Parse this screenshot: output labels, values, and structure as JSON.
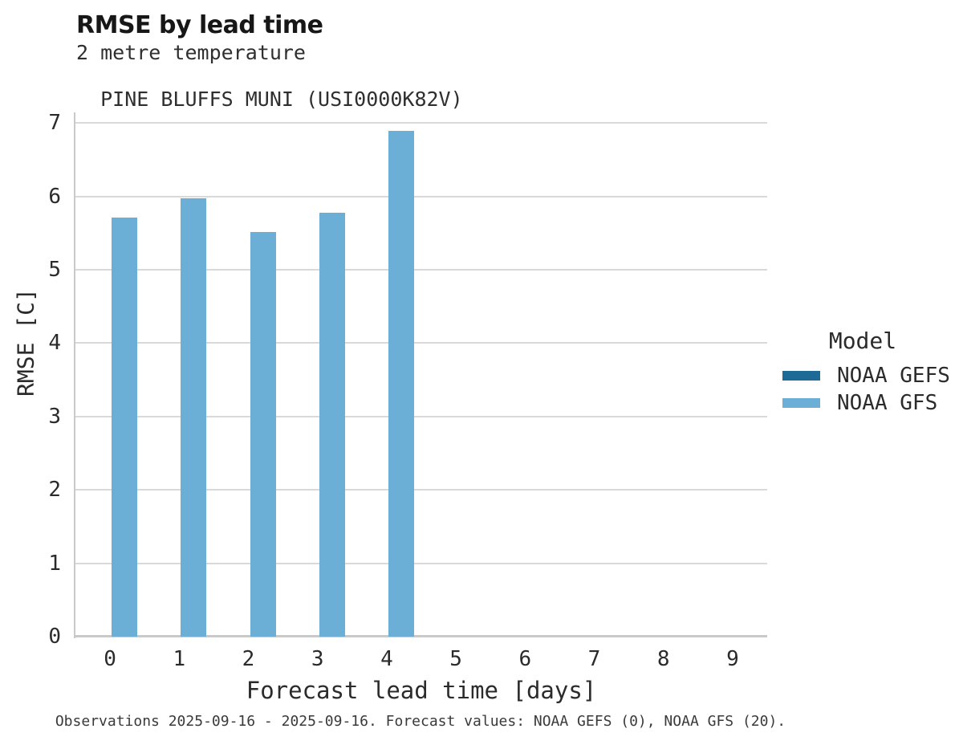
{
  "header": {
    "title": "RMSE by lead time",
    "subtitle_line1": "2 metre temperature",
    "subtitle_line2": "PINE BLUFFS MUNI (USI0000K82V)"
  },
  "chart_data": {
    "type": "bar",
    "title": "RMSE by lead time",
    "subtitle": [
      "2 metre temperature",
      "PINE BLUFFS MUNI (USI0000K82V)"
    ],
    "xlabel": "Forecast lead time [days]",
    "ylabel": "RMSE [C]",
    "categories": [
      0,
      1,
      2,
      3,
      4,
      5,
      6,
      7,
      8,
      9
    ],
    "series": [
      {
        "name": "NOAA GEFS",
        "color": "#1d6a96",
        "values": [
          null,
          null,
          null,
          null,
          null,
          null,
          null,
          null,
          null,
          null
        ]
      },
      {
        "name": "NOAA GFS",
        "color": "#6baed6",
        "values": [
          5.71,
          5.97,
          5.51,
          5.78,
          6.89,
          null,
          null,
          null,
          null,
          null
        ]
      }
    ],
    "y_ticks": [
      0,
      1,
      2,
      3,
      4,
      5,
      6,
      7
    ],
    "ylim": [
      0,
      7.15
    ],
    "grid": "horizontal",
    "legend_title": "Model",
    "legend_position": "right"
  },
  "legend": {
    "title": "Model",
    "items": [
      {
        "label": "NOAA GEFS",
        "color": "#1d6a96"
      },
      {
        "label": "NOAA GFS",
        "color": "#6baed6"
      }
    ]
  },
  "footer": {
    "caption": "Observations 2025-09-16 - 2025-09-16. Forecast values: NOAA GEFS (0), NOAA GFS (20)."
  },
  "colors": {
    "gridline": "#d9d9d9",
    "axis": "#c9c9c9",
    "text": "#2b2b2b"
  }
}
